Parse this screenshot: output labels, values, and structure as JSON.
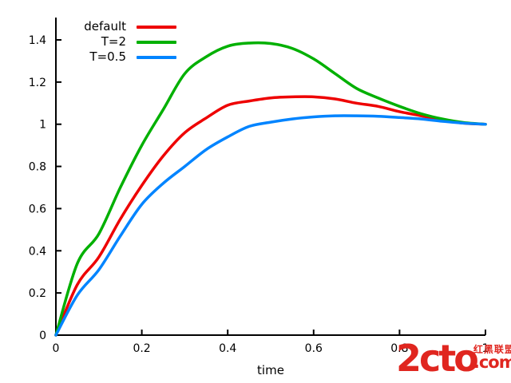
{
  "colors": {
    "axis": "#000000",
    "text": "#000000",
    "watermark_red": "#e0261f"
  },
  "watermark": {
    "main": "2cto",
    "cn": "红黑联盟",
    "com": ".com"
  },
  "chart_data": {
    "type": "line",
    "title": "",
    "xlabel": "time",
    "ylabel": "",
    "xlim": [
      0,
      1
    ],
    "ylim": [
      0,
      1.4
    ],
    "grid": false,
    "legend_position": "top-left-inside",
    "x_tick_values": [
      0,
      0.2,
      0.4,
      0.6,
      0.8,
      1
    ],
    "x_tick_labels": [
      "0",
      "0.2",
      "0.4",
      "0.6",
      "0.8",
      "1"
    ],
    "y_tick_values": [
      0,
      0.2,
      0.4,
      0.6,
      0.8,
      1,
      1.2,
      1.4
    ],
    "y_tick_labels": [
      "0",
      "0.2",
      "0.4",
      "0.6",
      "0.8",
      "1",
      "1.2",
      "1.4"
    ],
    "x": [
      0,
      0.05,
      0.1,
      0.15,
      0.2,
      0.25,
      0.3,
      0.35,
      0.4,
      0.45,
      0.5,
      0.55,
      0.6,
      0.65,
      0.7,
      0.75,
      0.8,
      0.85,
      0.9,
      0.95,
      1
    ],
    "series": [
      {
        "name": "default",
        "color": "#ee0000",
        "peak": {
          "t": 0.56,
          "value": 1.13
        },
        "values": [
          0,
          0.24,
          0.37,
          0.55,
          0.71,
          0.85,
          0.96,
          1.03,
          1.09,
          1.11,
          1.125,
          1.13,
          1.13,
          1.12,
          1.1,
          1.085,
          1.06,
          1.04,
          1.02,
          1.005,
          1.0
        ]
      },
      {
        "name": "T=2",
        "color": "#00b000",
        "peak": {
          "t": 0.47,
          "value": 1.385
        },
        "values": [
          0,
          0.34,
          0.48,
          0.7,
          0.9,
          1.07,
          1.24,
          1.32,
          1.37,
          1.385,
          1.383,
          1.36,
          1.31,
          1.24,
          1.17,
          1.125,
          1.085,
          1.05,
          1.025,
          1.008,
          1.0
        ]
      },
      {
        "name": "T=0.5",
        "color": "#0084ff",
        "peak": {
          "t": 0.67,
          "value": 1.04
        },
        "values": [
          0,
          0.19,
          0.31,
          0.47,
          0.62,
          0.72,
          0.8,
          0.88,
          0.94,
          0.99,
          1.01,
          1.025,
          1.035,
          1.04,
          1.04,
          1.038,
          1.032,
          1.025,
          1.014,
          1.005,
          1.0
        ]
      }
    ]
  }
}
